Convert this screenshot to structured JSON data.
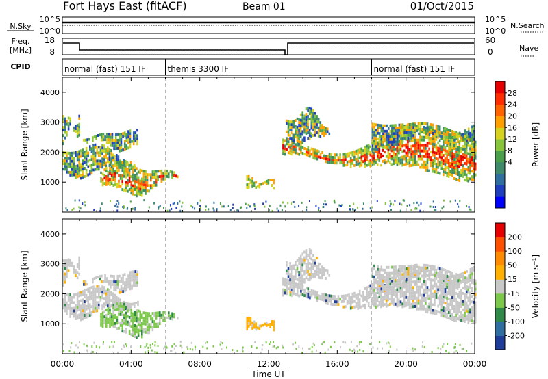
{
  "header": {
    "station": "Fort Hays East (fitACF)",
    "beam": "Beam 01",
    "date": "01/Oct/2015"
  },
  "strips": {
    "noise": {
      "left_label": "N.Sky",
      "right_label": "N.Search",
      "left_ticks": [
        "10^5",
        "10^0"
      ],
      "right_ticks": [
        "10^5",
        "10^0"
      ]
    },
    "freq": {
      "left_label_1": "Freq.",
      "left_label_2": "[MHz]",
      "right_label": "Nave",
      "left_ticks": [
        "18",
        "8"
      ],
      "right_ticks": [
        "60",
        "0"
      ]
    },
    "cpid": {
      "label": "CPID",
      "segments": [
        {
          "name": "normal (fast) 151 IF",
          "start": 0
        },
        {
          "name": "themis 3300 IF",
          "start": 6
        },
        {
          "name": "normal (fast) 151 IF",
          "start": 18
        }
      ]
    }
  },
  "chart_data": [
    {
      "type": "heatmap",
      "name": "power",
      "ylabel": "Slant Range [km]",
      "colorbar_label": "Power [dB]",
      "ylim": [
        0,
        4500
      ],
      "yticks": [
        "1000",
        "2000",
        "3000",
        "4000"
      ],
      "xlim": [
        0,
        24
      ],
      "colorbar_ticks": [
        "28",
        "24",
        "20",
        "16",
        "12",
        "8",
        "4"
      ],
      "colorbar_colors": [
        "#0000ff",
        "#1f3fbf",
        "#2e6fa0",
        "#3e8a6a",
        "#4aa04a",
        "#88c43c",
        "#d7d21e",
        "#ffa000",
        "#ff6400",
        "#ff2d00",
        "#e60000"
      ],
      "echo_regions": [
        {
          "t0": 0.0,
          "t1": 4.4,
          "r0": 1350,
          "r1": 2150,
          "level": "mixed"
        },
        {
          "t0": 0.0,
          "t1": 1.0,
          "r0": 2500,
          "r1": 3300,
          "level": "mixed"
        },
        {
          "t0": 1.2,
          "t1": 4.4,
          "r0": 2200,
          "r1": 2700,
          "level": "mixed"
        },
        {
          "t0": 2.2,
          "t1": 6.7,
          "r0": 750,
          "r1": 1550,
          "level": "strong"
        },
        {
          "t0": 10.7,
          "t1": 12.3,
          "r0": 800,
          "r1": 1150,
          "level": "moderate"
        },
        {
          "t0": 12.8,
          "t1": 24.0,
          "r0": 1350,
          "r1": 2700,
          "level": "strong"
        },
        {
          "t0": 13.0,
          "t1": 15.5,
          "r0": 2400,
          "r1": 3300,
          "level": "mixed"
        },
        {
          "t0": 18.0,
          "t1": 24.0,
          "r0": 2300,
          "r1": 3000,
          "level": "mixed"
        }
      ]
    },
    {
      "type": "heatmap",
      "name": "velocity",
      "ylabel": "Slant Range [km]",
      "colorbar_label": "Velocity [m s⁻¹]",
      "ylim": [
        0,
        4500
      ],
      "yticks": [
        "1000",
        "2000",
        "3000",
        "4000"
      ],
      "xlabel": "Time UT",
      "xlim": [
        0,
        24
      ],
      "xticks": [
        "00:00",
        "04:00",
        "08:00",
        "12:00",
        "16:00",
        "20:00",
        "00:00"
      ],
      "colorbar_ticks": [
        "200",
        "100",
        "50",
        "15",
        "-15",
        "-50",
        "-100",
        "-200"
      ],
      "colorbar_colors": [
        "#1e3c9a",
        "#2f6ea0",
        "#2f8a4a",
        "#7cc84a",
        "#c8c8c8",
        "#ffb000",
        "#ff8c00",
        "#ff5000",
        "#e60000"
      ],
      "echo_regions": [
        {
          "t0": 0.0,
          "t1": 4.4,
          "r0": 1350,
          "r1": 2150,
          "level": "ground"
        },
        {
          "t0": 0.0,
          "t1": 1.0,
          "r0": 2500,
          "r1": 3300,
          "level": "ground"
        },
        {
          "t0": 1.2,
          "t1": 4.4,
          "r0": 2200,
          "r1": 2700,
          "level": "ground"
        },
        {
          "t0": 2.2,
          "t1": 6.7,
          "r0": 750,
          "r1": 1550,
          "level": "green"
        },
        {
          "t0": 10.7,
          "t1": 12.3,
          "r0": 800,
          "r1": 1150,
          "level": "orange"
        },
        {
          "t0": 12.8,
          "t1": 24.0,
          "r0": 1350,
          "r1": 2700,
          "level": "ground"
        },
        {
          "t0": 13.0,
          "t1": 15.5,
          "r0": 2400,
          "r1": 3300,
          "level": "ground"
        },
        {
          "t0": 18.0,
          "t1": 24.0,
          "r0": 2300,
          "r1": 3000,
          "level": "ground"
        }
      ]
    }
  ]
}
